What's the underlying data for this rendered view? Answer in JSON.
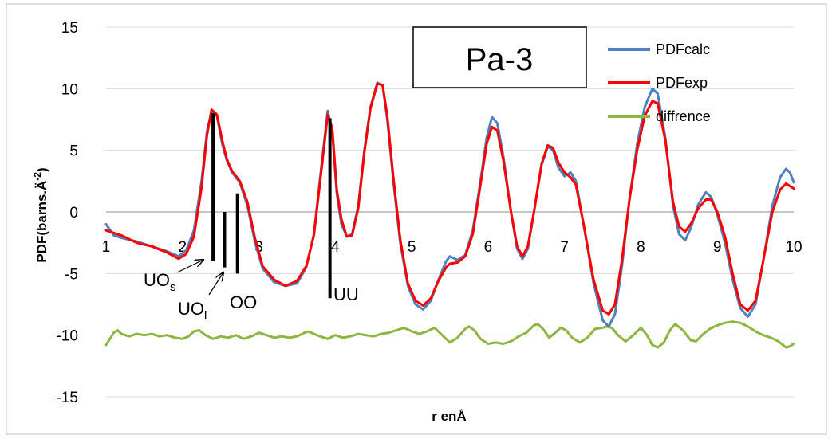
{
  "chart_data": {
    "type": "line",
    "title": "Pa-3",
    "xlabel": "r enÅ",
    "ylabel_main": "PDF(barns.Ä",
    "ylabel_sup": "-2",
    "ylabel_close": ")",
    "xlim": [
      1,
      10
    ],
    "ylim": [
      -15,
      15
    ],
    "x_ticks": [
      "1",
      "2",
      "3",
      "4",
      "5",
      "6",
      "7",
      "8",
      "9",
      "10"
    ],
    "y_ticks": [
      "15",
      "10",
      "5",
      "0",
      "-5",
      "-10",
      "-15"
    ],
    "y_tick_values": [
      15,
      10,
      5,
      0,
      -5,
      -10,
      -15
    ],
    "grid": "horizontal",
    "legend_placement": "top-right",
    "colors": {
      "calc": "#4f81bd",
      "exp": "#ff0000",
      "diff": "#8db53f"
    },
    "series": [
      {
        "name": "PDFcalc",
        "key": "calc",
        "points": [
          [
            1.0,
            -1.0
          ],
          [
            1.1,
            -1.9
          ],
          [
            1.2,
            -2.1
          ],
          [
            1.4,
            -2.4
          ],
          [
            1.6,
            -2.8
          ],
          [
            1.8,
            -3.2
          ],
          [
            1.95,
            -3.6
          ],
          [
            2.05,
            -3.1
          ],
          [
            2.15,
            -1.5
          ],
          [
            2.25,
            2.5
          ],
          [
            2.32,
            6.5
          ],
          [
            2.38,
            8.2
          ],
          [
            2.45,
            7.8
          ],
          [
            2.52,
            5.5
          ],
          [
            2.58,
            4.2
          ],
          [
            2.65,
            3.2
          ],
          [
            2.75,
            2.4
          ],
          [
            2.85,
            0.5
          ],
          [
            2.95,
            -2.5
          ],
          [
            3.05,
            -4.6
          ],
          [
            3.2,
            -5.7
          ],
          [
            3.35,
            -6.0
          ],
          [
            3.5,
            -5.8
          ],
          [
            3.62,
            -4.5
          ],
          [
            3.72,
            -1.8
          ],
          [
            3.82,
            3.8
          ],
          [
            3.9,
            8.2
          ],
          [
            3.96,
            6.5
          ],
          [
            4.02,
            1.5
          ],
          [
            4.08,
            -1.0
          ],
          [
            4.15,
            -2.0
          ],
          [
            4.22,
            -1.8
          ],
          [
            4.3,
            0.5
          ],
          [
            4.38,
            5.0
          ],
          [
            4.46,
            8.5
          ],
          [
            4.55,
            10.5
          ],
          [
            4.62,
            10.2
          ],
          [
            4.68,
            7.5
          ],
          [
            4.76,
            2.5
          ],
          [
            4.85,
            -2.5
          ],
          [
            4.95,
            -6.0
          ],
          [
            5.05,
            -7.5
          ],
          [
            5.15,
            -7.9
          ],
          [
            5.25,
            -7.2
          ],
          [
            5.35,
            -5.5
          ],
          [
            5.45,
            -4.0
          ],
          [
            5.5,
            -3.6
          ],
          [
            5.6,
            -3.9
          ],
          [
            5.7,
            -3.5
          ],
          [
            5.8,
            -1.5
          ],
          [
            5.9,
            2.5
          ],
          [
            5.98,
            6.0
          ],
          [
            6.05,
            7.7
          ],
          [
            6.12,
            7.2
          ],
          [
            6.2,
            4.5
          ],
          [
            6.3,
            0.0
          ],
          [
            6.38,
            -3.0
          ],
          [
            6.45,
            -3.8
          ],
          [
            6.52,
            -3.0
          ],
          [
            6.6,
            0.0
          ],
          [
            6.7,
            3.8
          ],
          [
            6.78,
            5.3
          ],
          [
            6.85,
            5.0
          ],
          [
            6.92,
            3.6
          ],
          [
            7.0,
            2.9
          ],
          [
            7.08,
            3.2
          ],
          [
            7.15,
            2.5
          ],
          [
            7.25,
            -1.0
          ],
          [
            7.38,
            -5.8
          ],
          [
            7.5,
            -8.8
          ],
          [
            7.58,
            -9.3
          ],
          [
            7.66,
            -8.3
          ],
          [
            7.75,
            -4.5
          ],
          [
            7.85,
            1.0
          ],
          [
            7.95,
            5.5
          ],
          [
            8.05,
            8.5
          ],
          [
            8.15,
            10.0
          ],
          [
            8.22,
            9.6
          ],
          [
            8.32,
            6.0
          ],
          [
            8.42,
            0.5
          ],
          [
            8.5,
            -1.8
          ],
          [
            8.58,
            -2.3
          ],
          [
            8.66,
            -1.2
          ],
          [
            8.75,
            0.6
          ],
          [
            8.85,
            1.6
          ],
          [
            8.92,
            1.2
          ],
          [
            9.0,
            -0.2
          ],
          [
            9.1,
            -2.5
          ],
          [
            9.2,
            -5.5
          ],
          [
            9.3,
            -7.8
          ],
          [
            9.4,
            -8.5
          ],
          [
            9.5,
            -7.5
          ],
          [
            9.6,
            -4.0
          ],
          [
            9.72,
            0.5
          ],
          [
            9.82,
            2.8
          ],
          [
            9.9,
            3.5
          ],
          [
            9.95,
            3.2
          ],
          [
            10.0,
            2.4
          ]
        ]
      },
      {
        "name": "PDFexp",
        "key": "exp",
        "points": [
          [
            1.0,
            -1.5
          ],
          [
            1.1,
            -1.7
          ],
          [
            1.2,
            -1.9
          ],
          [
            1.4,
            -2.5
          ],
          [
            1.6,
            -2.8
          ],
          [
            1.8,
            -3.3
          ],
          [
            1.95,
            -3.8
          ],
          [
            2.05,
            -3.4
          ],
          [
            2.15,
            -2.0
          ],
          [
            2.25,
            2.0
          ],
          [
            2.32,
            6.2
          ],
          [
            2.38,
            8.3
          ],
          [
            2.45,
            7.9
          ],
          [
            2.52,
            5.8
          ],
          [
            2.58,
            4.3
          ],
          [
            2.65,
            3.3
          ],
          [
            2.75,
            2.5
          ],
          [
            2.85,
            0.8
          ],
          [
            2.95,
            -2.2
          ],
          [
            3.05,
            -4.4
          ],
          [
            3.2,
            -5.5
          ],
          [
            3.35,
            -6.0
          ],
          [
            3.5,
            -5.6
          ],
          [
            3.62,
            -4.4
          ],
          [
            3.72,
            -1.9
          ],
          [
            3.82,
            3.5
          ],
          [
            3.9,
            7.9
          ],
          [
            3.96,
            6.8
          ],
          [
            4.02,
            1.8
          ],
          [
            4.08,
            -0.6
          ],
          [
            4.15,
            -2.0
          ],
          [
            4.22,
            -1.9
          ],
          [
            4.3,
            0.3
          ],
          [
            4.38,
            4.8
          ],
          [
            4.46,
            8.4
          ],
          [
            4.55,
            10.4
          ],
          [
            4.62,
            10.3
          ],
          [
            4.68,
            7.8
          ],
          [
            4.76,
            2.8
          ],
          [
            4.85,
            -2.2
          ],
          [
            4.95,
            -5.8
          ],
          [
            5.05,
            -7.2
          ],
          [
            5.15,
            -7.6
          ],
          [
            5.25,
            -7.0
          ],
          [
            5.35,
            -5.6
          ],
          [
            5.45,
            -4.5
          ],
          [
            5.5,
            -4.2
          ],
          [
            5.6,
            -4.1
          ],
          [
            5.7,
            -3.6
          ],
          [
            5.8,
            -1.8
          ],
          [
            5.9,
            2.2
          ],
          [
            5.98,
            5.5
          ],
          [
            6.05,
            6.9
          ],
          [
            6.12,
            6.6
          ],
          [
            6.2,
            4.2
          ],
          [
            6.3,
            0.0
          ],
          [
            6.38,
            -2.8
          ],
          [
            6.45,
            -3.6
          ],
          [
            6.52,
            -2.8
          ],
          [
            6.6,
            0.0
          ],
          [
            6.7,
            3.9
          ],
          [
            6.78,
            5.4
          ],
          [
            6.85,
            5.2
          ],
          [
            6.92,
            4.0
          ],
          [
            7.0,
            3.2
          ],
          [
            7.08,
            2.8
          ],
          [
            7.15,
            2.2
          ],
          [
            7.25,
            -1.0
          ],
          [
            7.38,
            -5.5
          ],
          [
            7.5,
            -8.0
          ],
          [
            7.58,
            -8.3
          ],
          [
            7.66,
            -7.5
          ],
          [
            7.75,
            -4.0
          ],
          [
            7.85,
            1.0
          ],
          [
            7.95,
            5.0
          ],
          [
            8.05,
            7.8
          ],
          [
            8.15,
            9.0
          ],
          [
            8.22,
            8.8
          ],
          [
            8.32,
            5.8
          ],
          [
            8.42,
            0.8
          ],
          [
            8.5,
            -1.2
          ],
          [
            8.58,
            -1.6
          ],
          [
            8.66,
            -0.9
          ],
          [
            8.75,
            0.3
          ],
          [
            8.85,
            1.0
          ],
          [
            8.92,
            1.0
          ],
          [
            9.0,
            0.0
          ],
          [
            9.1,
            -2.0
          ],
          [
            9.2,
            -5.0
          ],
          [
            9.3,
            -7.5
          ],
          [
            9.4,
            -8.0
          ],
          [
            9.5,
            -7.2
          ],
          [
            9.6,
            -4.0
          ],
          [
            9.72,
            0.0
          ],
          [
            9.82,
            1.8
          ],
          [
            9.9,
            2.3
          ],
          [
            9.95,
            2.1
          ],
          [
            10.0,
            1.9
          ]
        ]
      },
      {
        "name": "diffrence",
        "key": "diff",
        "points": [
          [
            1.0,
            -10.8
          ],
          [
            1.05,
            -10.3
          ],
          [
            1.1,
            -9.8
          ],
          [
            1.15,
            -9.6
          ],
          [
            1.2,
            -9.9
          ],
          [
            1.3,
            -10.1
          ],
          [
            1.4,
            -9.9
          ],
          [
            1.5,
            -10.0
          ],
          [
            1.6,
            -9.9
          ],
          [
            1.7,
            -10.1
          ],
          [
            1.8,
            -10.0
          ],
          [
            1.9,
            -10.2
          ],
          [
            2.0,
            -10.3
          ],
          [
            2.08,
            -10.1
          ],
          [
            2.15,
            -9.7
          ],
          [
            2.22,
            -9.6
          ],
          [
            2.3,
            -10.0
          ],
          [
            2.4,
            -10.3
          ],
          [
            2.5,
            -10.1
          ],
          [
            2.6,
            -10.2
          ],
          [
            2.7,
            -10.0
          ],
          [
            2.8,
            -10.3
          ],
          [
            2.9,
            -10.1
          ],
          [
            3.0,
            -9.8
          ],
          [
            3.1,
            -10.0
          ],
          [
            3.2,
            -10.2
          ],
          [
            3.3,
            -10.1
          ],
          [
            3.4,
            -10.2
          ],
          [
            3.5,
            -10.1
          ],
          [
            3.6,
            -9.8
          ],
          [
            3.65,
            -9.7
          ],
          [
            3.72,
            -9.9
          ],
          [
            3.8,
            -10.1
          ],
          [
            3.9,
            -10.3
          ],
          [
            4.0,
            -10.0
          ],
          [
            4.1,
            -10.2
          ],
          [
            4.2,
            -10.1
          ],
          [
            4.3,
            -9.9
          ],
          [
            4.4,
            -10.0
          ],
          [
            4.5,
            -10.1
          ],
          [
            4.6,
            -9.9
          ],
          [
            4.7,
            -9.8
          ],
          [
            4.8,
            -9.6
          ],
          [
            4.9,
            -9.4
          ],
          [
            5.0,
            -9.7
          ],
          [
            5.1,
            -9.9
          ],
          [
            5.2,
            -9.7
          ],
          [
            5.3,
            -9.4
          ],
          [
            5.4,
            -10.0
          ],
          [
            5.5,
            -10.6
          ],
          [
            5.6,
            -10.2
          ],
          [
            5.7,
            -9.5
          ],
          [
            5.75,
            -9.3
          ],
          [
            5.82,
            -9.6
          ],
          [
            5.9,
            -10.3
          ],
          [
            6.0,
            -10.7
          ],
          [
            6.1,
            -10.6
          ],
          [
            6.2,
            -10.7
          ],
          [
            6.3,
            -10.5
          ],
          [
            6.4,
            -10.1
          ],
          [
            6.5,
            -9.8
          ],
          [
            6.6,
            -9.2
          ],
          [
            6.65,
            -9.1
          ],
          [
            6.72,
            -9.5
          ],
          [
            6.8,
            -10.2
          ],
          [
            6.88,
            -9.8
          ],
          [
            6.95,
            -9.4
          ],
          [
            7.02,
            -9.6
          ],
          [
            7.1,
            -10.2
          ],
          [
            7.2,
            -10.6
          ],
          [
            7.3,
            -10.2
          ],
          [
            7.4,
            -9.5
          ],
          [
            7.5,
            -9.4
          ],
          [
            7.55,
            -9.3
          ],
          [
            7.62,
            -9.4
          ],
          [
            7.7,
            -10.0
          ],
          [
            7.8,
            -10.5
          ],
          [
            7.9,
            -10.0
          ],
          [
            8.0,
            -9.4
          ],
          [
            8.08,
            -10.0
          ],
          [
            8.15,
            -10.8
          ],
          [
            8.22,
            -11.0
          ],
          [
            8.3,
            -10.6
          ],
          [
            8.38,
            -9.6
          ],
          [
            8.45,
            -9.1
          ],
          [
            8.55,
            -9.6
          ],
          [
            8.65,
            -10.4
          ],
          [
            8.72,
            -10.5
          ],
          [
            8.8,
            -10.0
          ],
          [
            8.9,
            -9.5
          ],
          [
            9.0,
            -9.2
          ],
          [
            9.1,
            -9.0
          ],
          [
            9.2,
            -8.9
          ],
          [
            9.3,
            -9.0
          ],
          [
            9.4,
            -9.3
          ],
          [
            9.5,
            -9.7
          ],
          [
            9.6,
            -10.0
          ],
          [
            9.7,
            -10.2
          ],
          [
            9.8,
            -10.5
          ],
          [
            9.9,
            -11.0
          ],
          [
            9.95,
            -10.9
          ],
          [
            10.0,
            -10.7
          ]
        ]
      }
    ],
    "peak_markers": [
      {
        "name": "UO_s",
        "x": 2.4,
        "y_top": 8.0,
        "y_bottom": -4.0
      },
      {
        "name": "UO_l",
        "x": 2.55,
        "y_top": 0.0,
        "y_bottom": -4.5
      },
      {
        "name": "OO",
        "x": 2.72,
        "y_top": 1.5,
        "y_bottom": -5.0
      },
      {
        "name": "UU",
        "x": 3.93,
        "y_top": 7.6,
        "y_bottom": -7.0
      }
    ],
    "annotations": {
      "uos_base": "UO",
      "uos_sub": "s",
      "uol_base": "UO",
      "uol_sub": "l",
      "oo": "OO",
      "uu": "UU"
    }
  }
}
